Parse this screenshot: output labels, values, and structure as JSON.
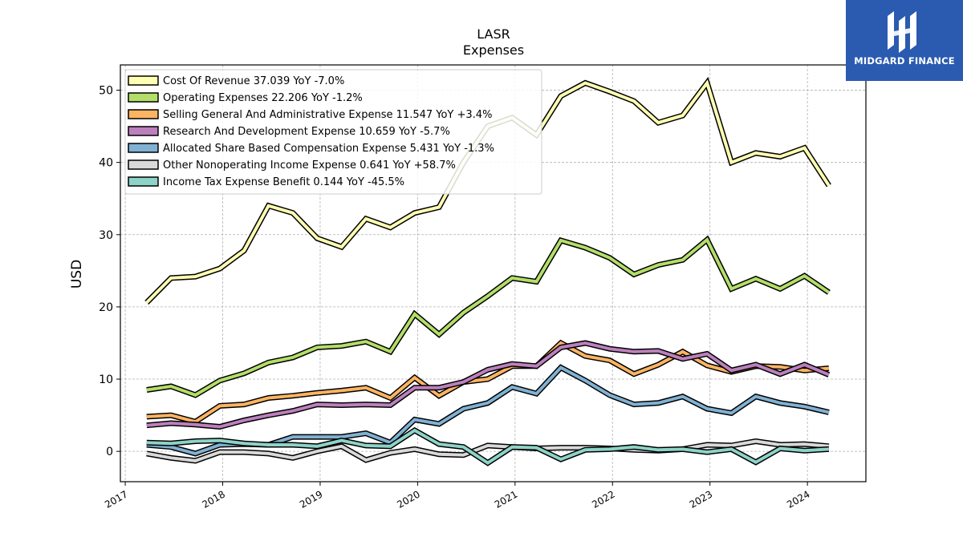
{
  "brand": {
    "name": "MIDGARD FINANCE",
    "logo_icon": "midgard-mh-monogram-icon",
    "bg_color": "#2a5bb0"
  },
  "chart_data": {
    "type": "line",
    "title": "LASR",
    "subtitle": "Expenses",
    "ylabel": "USD",
    "xlabel": "",
    "xlim": [
      2016.95,
      2024.6
    ],
    "ylim": [
      -4.2,
      53.5
    ],
    "yticks": [
      0,
      10,
      20,
      30,
      40,
      50
    ],
    "xticks": [
      "2017",
      "2018",
      "2019",
      "2020",
      "2021",
      "2022",
      "2023",
      "2024"
    ],
    "grid": true,
    "legend_position": "upper-left",
    "x": [
      2017.22,
      2017.47,
      2017.72,
      2017.97,
      2018.22,
      2018.47,
      2018.72,
      2018.97,
      2019.22,
      2019.47,
      2019.72,
      2019.97,
      2020.22,
      2020.47,
      2020.72,
      2020.97,
      2021.22,
      2021.47,
      2021.72,
      2021.97,
      2022.22,
      2022.47,
      2022.72,
      2022.97,
      2023.22,
      2023.47,
      2023.72,
      2023.97,
      2024.22
    ],
    "series": [
      {
        "name": "Cost Of Revenue",
        "legend": "Cost Of Revenue  37.039 YoY -7.0%",
        "color": "#ffffb3",
        "values": [
          20.6,
          24.0,
          24.2,
          25.3,
          27.8,
          34.0,
          33.0,
          29.5,
          28.3,
          32.2,
          31.0,
          33.0,
          33.8,
          40.0,
          45.0,
          46.2,
          43.8,
          49.2,
          51.0,
          49.8,
          48.5,
          45.5,
          46.5,
          51.0,
          40.0,
          41.3,
          40.8,
          42.0,
          36.8
        ]
      },
      {
        "name": "Operating Expenses",
        "legend": "Operating Expenses  22.206 YoY -1.2%",
        "color": "#b3de69",
        "values": [
          8.5,
          9.0,
          7.8,
          9.8,
          10.8,
          12.3,
          13.0,
          14.4,
          14.6,
          15.2,
          13.8,
          19.0,
          16.2,
          19.2,
          21.5,
          24.0,
          23.5,
          29.2,
          28.2,
          26.8,
          24.5,
          25.8,
          26.5,
          29.3,
          22.5,
          23.9,
          22.5,
          24.3,
          22.0
        ]
      },
      {
        "name": "Selling General And Administrative Expense",
        "legend": "Selling General And Administrative Expense  11.547 YoY +3.4%",
        "color": "#fdb462",
        "values": [
          4.8,
          5.0,
          4.1,
          6.3,
          6.5,
          7.4,
          7.7,
          8.1,
          8.4,
          8.8,
          7.4,
          10.2,
          7.7,
          9.6,
          10.0,
          11.8,
          11.8,
          15.0,
          13.2,
          12.6,
          10.7,
          12.0,
          13.8,
          11.9,
          11.0,
          11.8,
          11.7,
          11.2,
          11.5
        ]
      },
      {
        "name": "Research And Development Expense",
        "legend": "Research And Development Expense  10.659 YoY -5.7%",
        "color": "#bc80bd",
        "values": [
          3.6,
          3.9,
          3.7,
          3.4,
          4.3,
          5.0,
          5.6,
          6.5,
          6.4,
          6.5,
          6.4,
          8.8,
          8.8,
          9.6,
          11.3,
          12.1,
          11.8,
          14.4,
          15.0,
          14.2,
          13.8,
          13.9,
          12.8,
          13.5,
          11.2,
          12.0,
          10.7,
          12.0,
          10.6
        ]
      },
      {
        "name": "Allocated Share Based Compensation Expense",
        "legend": "Allocated Share Based Compensation Expense  5.431 YoY -1.3%",
        "color": "#80b1d3",
        "values": [
          0.9,
          0.6,
          -0.3,
          0.9,
          1.0,
          0.9,
          2.0,
          2.0,
          2.0,
          2.5,
          1.2,
          4.4,
          3.8,
          5.9,
          6.7,
          8.9,
          8.0,
          11.6,
          9.8,
          7.8,
          6.5,
          6.7,
          7.6,
          5.9,
          5.3,
          7.6,
          6.7,
          6.2,
          5.4
        ]
      },
      {
        "name": "Other Nonoperating Income Expense",
        "legend": "Other Nonoperating Income Expense  0.641 YoY +58.7%",
        "color": "#d9d9d9",
        "values": [
          -0.3,
          -0.9,
          -1.3,
          -0.1,
          -0.1,
          -0.3,
          -0.9,
          0.0,
          0.7,
          -1.2,
          -0.2,
          0.3,
          -0.4,
          -0.5,
          0.8,
          0.6,
          0.4,
          0.5,
          0.5,
          0.4,
          0.2,
          0.1,
          0.3,
          0.9,
          0.8,
          1.4,
          0.9,
          1.0,
          0.7
        ]
      },
      {
        "name": "Income Tax Expense Benefit",
        "legend": "Income Tax Expense Benefit  0.144 YoY -45.5%",
        "color": "#8dd3c7",
        "values": [
          1.2,
          1.1,
          1.4,
          1.5,
          1.1,
          0.9,
          0.9,
          0.7,
          1.5,
          0.8,
          0.7,
          2.9,
          1.0,
          0.6,
          -1.6,
          0.6,
          0.5,
          -1.1,
          0.2,
          0.3,
          0.6,
          0.2,
          0.3,
          -0.1,
          0.3,
          -1.5,
          0.4,
          0.1,
          0.3
        ]
      }
    ]
  }
}
